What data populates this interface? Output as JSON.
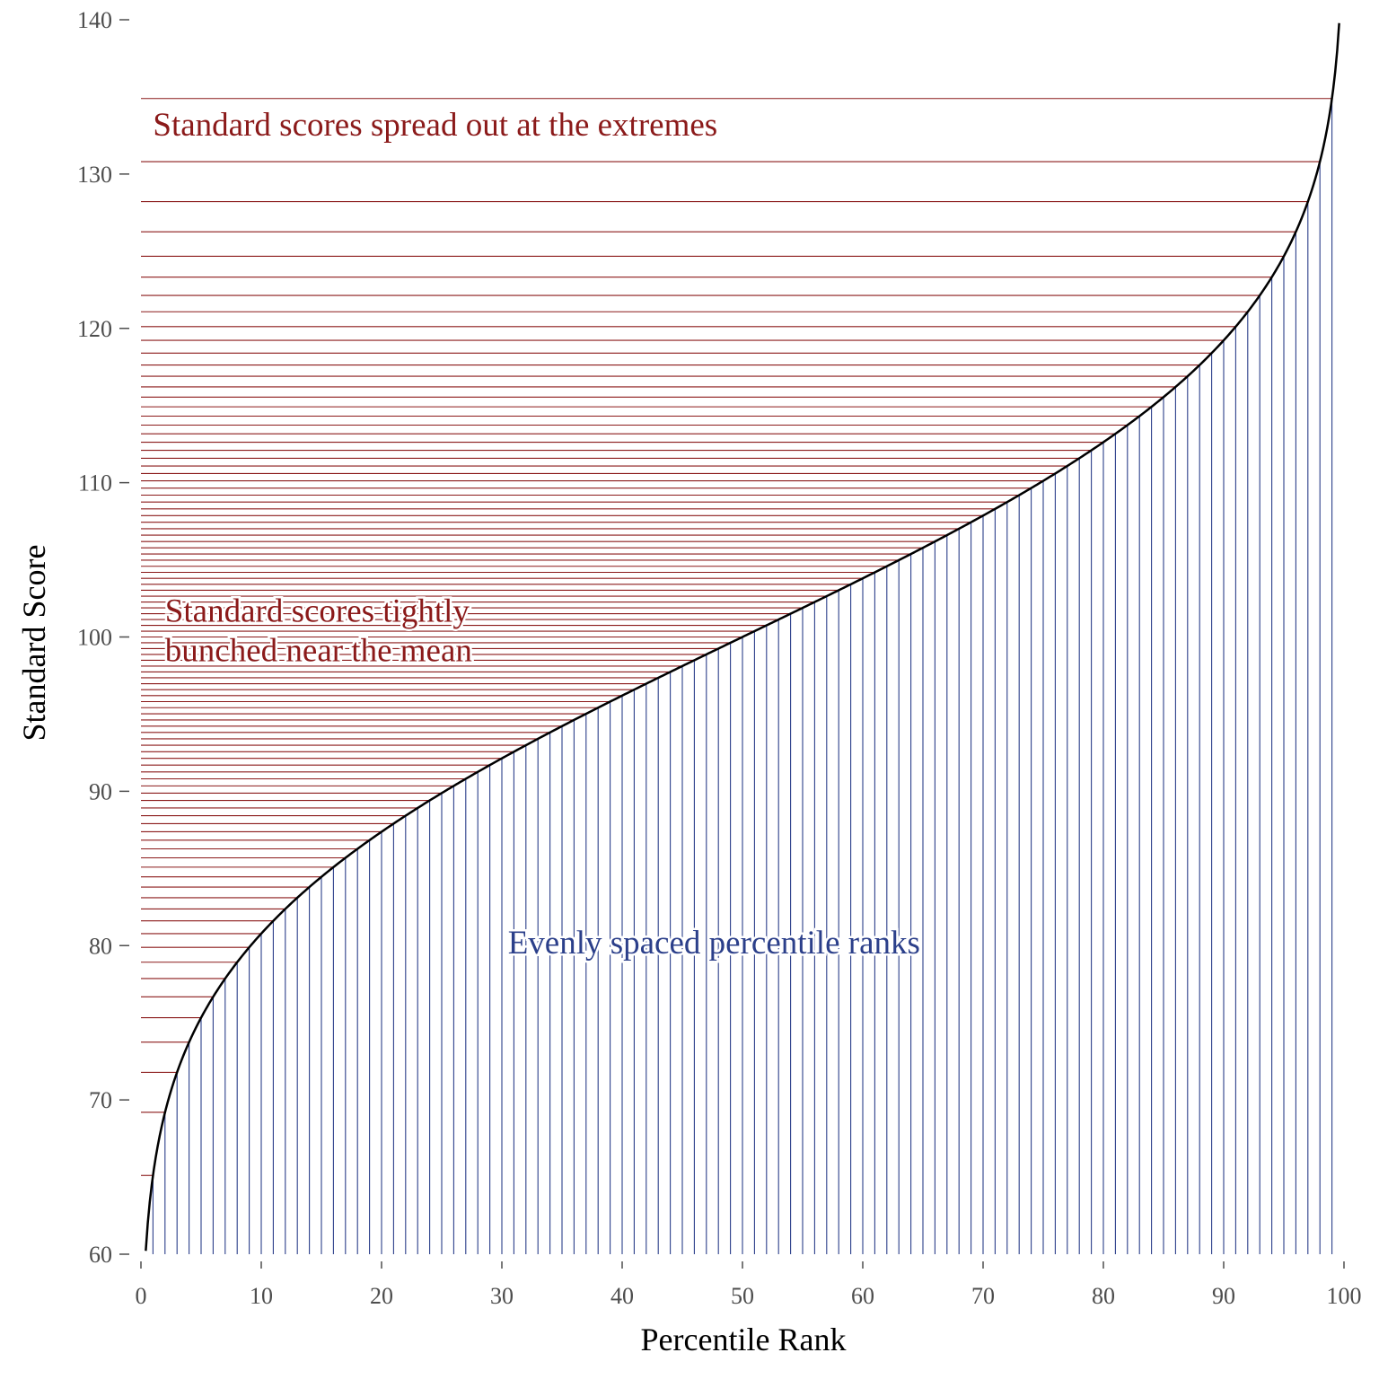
{
  "chart_data": {
    "type": "line",
    "xlabel": "Percentile Rank",
    "ylabel": "Standard Score",
    "xlim": [
      0,
      100
    ],
    "ylim": [
      60,
      140
    ],
    "x_ticks": [
      0,
      10,
      20,
      30,
      40,
      50,
      60,
      70,
      80,
      90,
      100
    ],
    "y_ticks": [
      60,
      70,
      80,
      90,
      100,
      110,
      120,
      130,
      140
    ],
    "grid": false,
    "curve": {
      "description_source": "normal quantile: score = 100 + 15 * z(percentile)",
      "mean": 100,
      "sd": 15,
      "x_range": [
        0.4,
        99.6
      ],
      "color": "#000000"
    },
    "percentile_ranks": [
      1,
      2,
      3,
      4,
      5,
      6,
      7,
      8,
      9,
      10,
      11,
      12,
      13,
      14,
      15,
      16,
      17,
      18,
      19,
      20,
      21,
      22,
      23,
      24,
      25,
      26,
      27,
      28,
      29,
      30,
      31,
      32,
      33,
      34,
      35,
      36,
      37,
      38,
      39,
      40,
      41,
      42,
      43,
      44,
      45,
      46,
      47,
      48,
      49,
      50,
      51,
      52,
      53,
      54,
      55,
      56,
      57,
      58,
      59,
      60,
      61,
      62,
      63,
      64,
      65,
      66,
      67,
      68,
      69,
      70,
      71,
      72,
      73,
      74,
      75,
      76,
      77,
      78,
      79,
      80,
      81,
      82,
      83,
      84,
      85,
      86,
      87,
      88,
      89,
      90,
      91,
      92,
      93,
      94,
      95,
      96,
      97,
      98,
      99
    ],
    "vertical_line_color": "#2b3f8a",
    "horizontal_line_color": "#8b1a1a",
    "annotations": [
      {
        "name": "extremes-note",
        "lines": [
          "Standard scores spread out at the extremes"
        ],
        "x": 1,
        "y": 132.5,
        "color": "#8b1a1a"
      },
      {
        "name": "mean-note",
        "lines": [
          "Standard scores tightly",
          "bunched near the mean"
        ],
        "x": 2,
        "y": 101,
        "color": "#8b1a1a"
      },
      {
        "name": "percentile-note",
        "lines": [
          "Evenly spaced percentile ranks"
        ],
        "x": 30.5,
        "y": 79.5,
        "color": "#2b3f8a"
      }
    ]
  }
}
